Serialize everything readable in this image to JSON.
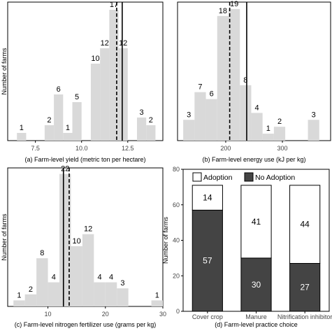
{
  "figure": {
    "panels": [
      "a",
      "b",
      "c",
      "d"
    ]
  },
  "colors": {
    "bar_fill": "#d9d9d9",
    "adoption_fill": "#ffffff",
    "no_adoption_fill": "#444444",
    "axis": "#000000",
    "grid": "#ffffff"
  },
  "chart_data": [
    {
      "id": "a",
      "type": "bar",
      "subtype": "histogram",
      "title": "",
      "xlabel": "(a) Farm-level yield (metric ton per hectare)",
      "ylabel": "Number of farms",
      "xlim": [
        6.0,
        14.4
      ],
      "ylim": [
        0,
        18
      ],
      "xticks": [
        7.5,
        10.0,
        12.5
      ],
      "xtick_labels": [
        "7.5",
        "10.0",
        "12.5"
      ],
      "bin_edges": [
        6.5,
        7.0,
        7.5,
        8.0,
        8.5,
        9.0,
        9.5,
        10.0,
        10.5,
        11.0,
        11.5,
        12.0,
        12.5,
        13.0,
        13.5,
        14.0
      ],
      "counts": [
        1,
        0,
        0,
        2,
        6,
        1,
        5,
        0,
        10,
        12,
        17,
        12,
        0,
        3,
        2
      ],
      "labels": [
        "1",
        "",
        "",
        "2",
        "6",
        "1",
        "5",
        "",
        "10",
        "12",
        "17",
        "12",
        "",
        "3",
        "2"
      ],
      "reference_lines": [
        {
          "style": "dashed",
          "x": 11.9
        },
        {
          "style": "solid",
          "x": 12.2
        }
      ]
    },
    {
      "id": "b",
      "type": "bar",
      "subtype": "histogram",
      "title": "",
      "xlabel": "(b) Farm-level energy use (kJ per kg)",
      "ylabel": "",
      "xlim": [
        115,
        385
      ],
      "ylim": [
        0,
        20
      ],
      "xticks": [
        200,
        300
      ],
      "xtick_labels": [
        "200",
        "300"
      ],
      "bin_edges": [
        125,
        145,
        165,
        185,
        205,
        225,
        245,
        265,
        285,
        305,
        325,
        345,
        365
      ],
      "counts": [
        3,
        7,
        6,
        18,
        19,
        8,
        4,
        1,
        2,
        0,
        0,
        3
      ],
      "labels": [
        "3",
        "7",
        "6",
        "18",
        "19",
        "8",
        "4",
        "1",
        "2",
        "",
        "",
        "3"
      ],
      "reference_lines": [
        {
          "style": "dashed",
          "x": 207
        },
        {
          "style": "solid",
          "x": 237
        }
      ]
    },
    {
      "id": "c",
      "type": "bar",
      "subtype": "histogram",
      "title": "",
      "xlabel": "(c) Farm-level nitrogen fertilizer use (grams per kg)",
      "ylabel": "Number of farms",
      "xlim": [
        3,
        30
      ],
      "ylim": [
        0,
        23
      ],
      "xticks": [
        10,
        20,
        30
      ],
      "xtick_labels": [
        "10",
        "20",
        "30"
      ],
      "bin_edges": [
        4,
        6,
        8,
        10,
        12,
        14,
        16,
        18,
        20,
        22,
        24,
        26,
        28,
        30
      ],
      "counts": [
        1,
        2,
        8,
        4,
        22,
        10,
        12,
        4,
        4,
        3,
        0,
        0,
        1
      ],
      "labels": [
        "1",
        "2",
        "8",
        "4",
        "22",
        "10",
        "12",
        "4",
        "4",
        "3",
        "",
        "",
        "1"
      ],
      "reference_lines": [
        {
          "style": "solid",
          "x": 12.7
        },
        {
          "style": "dashed",
          "x": 13.7
        }
      ]
    },
    {
      "id": "d",
      "type": "bar",
      "subtype": "stacked",
      "title": "",
      "xlabel": "(d) Farm-level practice choice",
      "ylabel": "Number of farms",
      "ylim": [
        0,
        80
      ],
      "yticks": [
        0,
        20,
        40,
        60,
        80
      ],
      "ytick_labels": [
        "0",
        "20",
        "40",
        "60",
        "80"
      ],
      "categories": [
        "Cover crop",
        "Manure",
        "Nitrification inhibitor"
      ],
      "legend": {
        "placement": "top",
        "entries": [
          "Adoption",
          "No Adoption"
        ]
      },
      "series": [
        {
          "name": "No Adoption",
          "values": [
            57,
            30,
            27
          ],
          "labels": [
            "57",
            "30",
            "27"
          ]
        },
        {
          "name": "Adoption",
          "values": [
            14,
            41,
            44
          ],
          "labels": [
            "14",
            "41",
            "44"
          ]
        }
      ]
    }
  ]
}
